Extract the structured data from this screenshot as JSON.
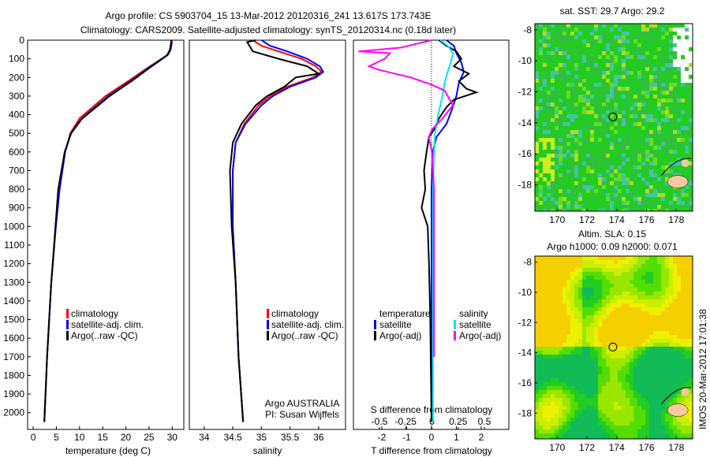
{
  "title": {
    "line1": "Argo profile: CS 5903704_15 13-Mar-2012 20120316_241 13.617S 173.743E",
    "line2": "Climatology: CARS2009. Satellite-adjusted climatology: synTS_20120314.nc (0.18d later)"
  },
  "colors": {
    "climatology": "#ff0000",
    "satellite": "#0000ff",
    "argo": "#000000",
    "s_satellite": "#00e5ee",
    "s_argo": "#ff00ff"
  },
  "chart_data": [
    {
      "type": "line",
      "xlabel": "temperature (deg C)",
      "xlim": [
        -1.2,
        32.5
      ],
      "xticks": [
        "0",
        "5",
        "10",
        "15",
        "20",
        "25",
        "30"
      ],
      "xtick_values": [
        0,
        5,
        10,
        15,
        20,
        25,
        30
      ],
      "ylim": [
        0,
        2090
      ],
      "yticks": [
        "0",
        "100",
        "200",
        "300",
        "400",
        "500",
        "600",
        "700",
        "800",
        "900",
        "1000",
        "1100",
        "1200",
        "1300",
        "1400",
        "1500",
        "1600",
        "1700",
        "1800",
        "1900",
        "2000"
      ],
      "legend": [
        "climatology",
        "satellite-adj. clim.",
        "Argo(..raw -QC)"
      ],
      "series": [
        {
          "name": "climatology",
          "color": "#ff0000",
          "depth": [
            0,
            20,
            50,
            80,
            150,
            220,
            300,
            420,
            500,
            600,
            800,
            1000,
            1300,
            1700,
            2050
          ],
          "values": [
            29.9,
            29.9,
            29.7,
            29.0,
            24.6,
            20.5,
            15.6,
            10.0,
            8.0,
            6.9,
            5.7,
            4.9,
            3.9,
            3.0,
            2.4
          ]
        },
        {
          "name": "satellite-adj. clim.",
          "color": "#0000ff",
          "depth": [
            0,
            20,
            50,
            80,
            150,
            220,
            300,
            420,
            500,
            600,
            800,
            1000,
            1300,
            1700,
            2050
          ],
          "values": [
            29.8,
            29.7,
            29.5,
            28.9,
            24.8,
            21.0,
            16.2,
            10.5,
            8.1,
            6.9,
            5.7,
            4.9,
            3.9,
            3.0,
            2.4
          ]
        },
        {
          "name": "Argo(..raw -QC)",
          "color": "#000000",
          "depth": [
            0,
            20,
            50,
            80,
            150,
            220,
            300,
            420,
            500,
            600,
            800,
            1000,
            1300,
            1700,
            2050
          ],
          "values": [
            29.9,
            29.8,
            29.6,
            29.0,
            25.0,
            21.2,
            16.5,
            10.6,
            8.2,
            6.8,
            5.4,
            4.8,
            3.9,
            3.0,
            2.4
          ]
        }
      ]
    },
    {
      "type": "line",
      "xlabel": "salinity",
      "xlim": [
        33.74,
        36.47
      ],
      "xticks": [
        "34",
        "34.5",
        "35",
        "35.5",
        "36"
      ],
      "xtick_values": [
        34,
        34.5,
        35,
        35.5,
        36
      ],
      "ylim": [
        0,
        2090
      ],
      "legend": [
        "climatology",
        "satellite-adj. clim.",
        "Argo(..raw -QC)"
      ],
      "annotation": [
        "Argo AUSTRALIA",
        "PI: Susan Wijffels"
      ],
      "series": [
        {
          "name": "climatology",
          "color": "#ff0000",
          "depth": [
            0,
            30,
            60,
            100,
            140,
            170,
            200,
            250,
            300,
            350,
            450,
            550,
            700,
            1000,
            1300,
            1700,
            2050
          ],
          "values": [
            34.85,
            35.0,
            35.3,
            35.7,
            35.95,
            36.05,
            35.9,
            35.45,
            35.15,
            34.95,
            34.7,
            34.55,
            34.5,
            34.5,
            34.55,
            34.6,
            34.68
          ]
        },
        {
          "name": "satellite-adj. clim.",
          "color": "#0000ff",
          "depth": [
            0,
            30,
            60,
            100,
            140,
            170,
            200,
            250,
            300,
            350,
            450,
            550,
            700,
            1000,
            1300,
            1700,
            2050
          ],
          "values": [
            35.0,
            35.15,
            35.45,
            35.8,
            36.02,
            36.08,
            35.95,
            35.5,
            35.2,
            35.0,
            34.72,
            34.55,
            34.5,
            34.5,
            34.55,
            34.6,
            34.68
          ]
        },
        {
          "name": "Argo(..raw -QC)",
          "color": "#000000",
          "depth": [
            0,
            10,
            60,
            100,
            140,
            180,
            200,
            250,
            300,
            350,
            450,
            550,
            700,
            1000,
            1300,
            1700,
            2050
          ],
          "values": [
            34.9,
            34.75,
            34.85,
            35.3,
            35.8,
            36.0,
            35.6,
            35.4,
            35.1,
            34.9,
            34.65,
            34.5,
            34.45,
            34.48,
            34.55,
            34.6,
            34.68
          ]
        }
      ]
    },
    {
      "type": "line",
      "xlabel": "T difference from climatology",
      "xlabel_top": "S difference from climatology",
      "xlim": [
        -3.14,
        3.11
      ],
      "xticks": [
        "-2",
        "-1",
        "0",
        "1",
        "2"
      ],
      "xtick_values": [
        -2,
        -1,
        0,
        1,
        2
      ],
      "xticks_top": [
        "-0.5",
        "-0.25",
        "0",
        "0.25",
        "0.5"
      ],
      "xtick_top_values": [
        -0.5,
        -0.25,
        0,
        0.25,
        0.5
      ],
      "ylim": [
        0,
        2090
      ],
      "legend_titles": [
        "temperature",
        "salinity"
      ],
      "legend": [
        "satellite",
        "Argo(-adj)",
        "satellite",
        "Argo(-adj)"
      ],
      "series": [
        {
          "name": "T satellite",
          "axis": "T",
          "color": "#0000ff",
          "depth": [
            0,
            30,
            70,
            120,
            170,
            230,
            300,
            380,
            450,
            520,
            600,
            800,
            1000,
            1500,
            2050
          ],
          "values": [
            0.6,
            0.9,
            1.0,
            1.2,
            1.3,
            1.1,
            1.0,
            0.8,
            0.6,
            0.2,
            0.05,
            0.0,
            0.0,
            0.0,
            0.0
          ]
        },
        {
          "name": "T Argo(-adj)",
          "axis": "T",
          "color": "#000000",
          "depth": [
            0,
            30,
            60,
            100,
            140,
            180,
            220,
            260,
            280,
            320,
            360,
            420,
            480,
            520,
            600,
            700,
            800,
            900,
            1000,
            1200,
            1500,
            2050
          ],
          "values": [
            0.3,
            0.6,
            1.0,
            1.2,
            0.9,
            1.5,
            1.1,
            1.4,
            1.8,
            0.9,
            0.6,
            0.3,
            0.1,
            -0.1,
            -0.2,
            -0.3,
            -0.25,
            -0.4,
            -0.15,
            -0.1,
            -0.05,
            0.0
          ]
        },
        {
          "name": "S satellite",
          "axis": "S",
          "color": "#00e5ee",
          "depth": [
            0,
            30,
            70,
            120,
            170,
            230,
            300,
            400,
            500,
            600,
            800,
            1000,
            1500,
            2050
          ],
          "values": [
            0.08,
            0.15,
            0.2,
            0.18,
            0.15,
            0.12,
            0.1,
            0.06,
            0.03,
            0.02,
            0.01,
            0.01,
            0.01,
            0.01
          ]
        },
        {
          "name": "S Argo(-adj)",
          "axis": "S",
          "color": "#ff00ff",
          "depth": [
            0,
            40,
            60,
            70,
            100,
            140,
            160,
            200,
            240,
            270,
            300,
            350,
            420,
            480,
            520,
            600,
            800,
            1000,
            1500,
            1700
          ],
          "values": [
            0.0,
            -0.3,
            -0.7,
            -0.4,
            -0.45,
            -0.6,
            -0.5,
            -0.2,
            0.0,
            0.12,
            0.15,
            0.2,
            0.1,
            0.0,
            -0.03,
            0.0,
            0.02,
            0.02,
            0.02,
            0.02
          ]
        }
      ]
    },
    {
      "type": "heatmap",
      "title": "sat. SST: 29.7 Argo: 29.2",
      "xlim": [
        168.5,
        179.1
      ],
      "xticks": [
        "170",
        "172",
        "174",
        "176",
        "178"
      ],
      "xtick_values": [
        170,
        172,
        174,
        176,
        178
      ],
      "ylim": [
        -19.7,
        -7.6
      ],
      "yticks": [
        "-8",
        "-10",
        "-12",
        "-14",
        "-16",
        "-18"
      ],
      "ytick_values": [
        -8,
        -10,
        -12,
        -14,
        -16,
        -18
      ],
      "marker": {
        "lon": 173.743,
        "lat": -13.617
      }
    },
    {
      "type": "heatmap",
      "title": "Altim. SLA: 0.15",
      "subtitle": "Argo h1000: 0.09 h2000: 0.071",
      "xlim": [
        168.5,
        179.1
      ],
      "xticks": [
        "170",
        "172",
        "174",
        "176",
        "178"
      ],
      "xtick_values": [
        170,
        172,
        174,
        176,
        178
      ],
      "ylim": [
        -19.7,
        -7.6
      ],
      "yticks": [
        "-8",
        "-10",
        "-12",
        "-14",
        "-16",
        "-18"
      ],
      "ytick_values": [
        -8,
        -10,
        -12,
        -14,
        -16,
        -18
      ],
      "marker": {
        "lon": 173.743,
        "lat": -13.617
      }
    }
  ],
  "footer": {
    "stamp": "IMOS 20-Mar-2012 17:01:38"
  }
}
